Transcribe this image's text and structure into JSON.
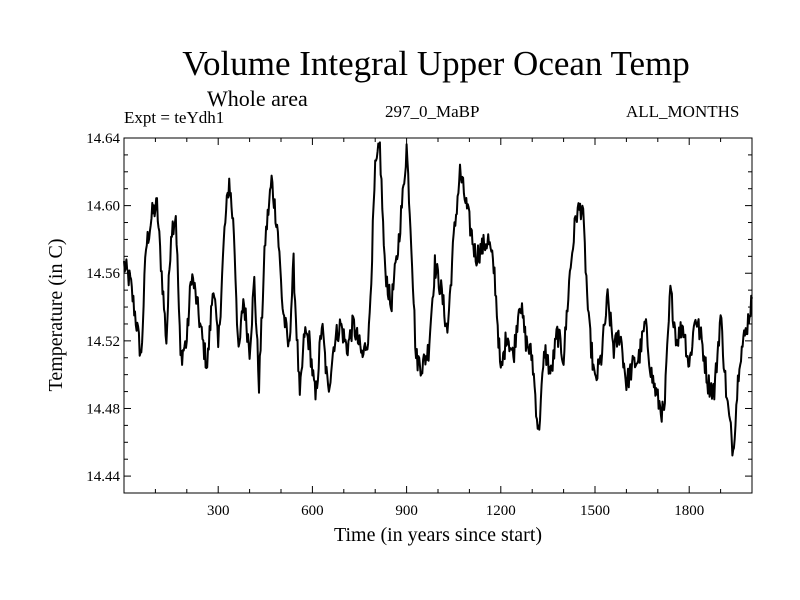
{
  "header": {
    "title": "Volume Integral Upper Ocean Temp",
    "subtitle": "Whole area",
    "experiment": "Expt = teYdh1",
    "period": "297_0_MaBP",
    "months": "ALL_MONTHS"
  },
  "chart_data": {
    "type": "line",
    "title": "Volume Integral Upper Ocean Temp",
    "xlabel": "Time (in years since start)",
    "ylabel": "Temperature (in C)",
    "xlim": [
      0,
      2000
    ],
    "ylim": [
      14.43,
      14.64
    ],
    "xticks": [
      300,
      600,
      900,
      1200,
      1500,
      1800
    ],
    "xtick_labels": [
      "300",
      "600",
      "900",
      "1200",
      "1500",
      "1800"
    ],
    "yticks": [
      14.44,
      14.48,
      14.52,
      14.56,
      14.6,
      14.64
    ],
    "ytick_labels": [
      "14.44",
      "14.48",
      "14.52",
      "14.56",
      "14.60",
      "14.64"
    ],
    "grid": false,
    "series": [
      {
        "name": "Volume Integral Upper Ocean Temp",
        "x": [
          0,
          20,
          40,
          55,
          70,
          90,
          105,
          120,
          135,
          150,
          165,
          180,
          200,
          215,
          230,
          250,
          265,
          285,
          300,
          320,
          335,
          350,
          365,
          380,
          400,
          415,
          430,
          450,
          470,
          490,
          505,
          525,
          540,
          560,
          575,
          590,
          610,
          630,
          650,
          670,
          690,
          710,
          730,
          760,
          780,
          800,
          815,
          830,
          850,
          870,
          890,
          900,
          915,
          930,
          950,
          970,
          990,
          1010,
          1030,
          1050,
          1070,
          1085,
          1100,
          1120,
          1140,
          1160,
          1180,
          1200,
          1220,
          1240,
          1260,
          1280,
          1300,
          1320,
          1340,
          1360,
          1380,
          1400,
          1420,
          1440,
          1460,
          1480,
          1500,
          1520,
          1540,
          1560,
          1580,
          1600,
          1620,
          1640,
          1660,
          1680,
          1700,
          1720,
          1740,
          1760,
          1780,
          1800,
          1820,
          1840,
          1860,
          1880,
          1900,
          1920,
          1940,
          1960,
          1980,
          2000
        ],
        "y": [
          14.565,
          14.555,
          14.53,
          14.51,
          14.575,
          14.595,
          14.6,
          14.56,
          14.52,
          14.585,
          14.595,
          14.51,
          14.52,
          14.56,
          14.545,
          14.52,
          14.505,
          14.555,
          14.515,
          14.585,
          14.615,
          14.585,
          14.51,
          14.545,
          14.515,
          14.555,
          14.495,
          14.58,
          14.615,
          14.585,
          14.54,
          14.515,
          14.565,
          14.485,
          14.525,
          14.52,
          14.485,
          14.53,
          14.49,
          14.52,
          14.53,
          14.515,
          14.53,
          14.51,
          14.525,
          14.62,
          14.635,
          14.565,
          14.54,
          14.57,
          14.61,
          14.635,
          14.58,
          14.51,
          14.505,
          14.515,
          14.565,
          14.55,
          14.525,
          14.58,
          14.62,
          14.605,
          14.59,
          14.57,
          14.575,
          14.58,
          14.56,
          14.5,
          14.525,
          14.51,
          14.545,
          14.52,
          14.51,
          14.465,
          14.515,
          14.5,
          14.525,
          14.51,
          14.56,
          14.595,
          14.6,
          14.53,
          14.495,
          14.51,
          14.545,
          14.515,
          14.525,
          14.495,
          14.505,
          14.51,
          14.53,
          14.5,
          14.485,
          14.475,
          14.55,
          14.52,
          14.53,
          14.505,
          14.535,
          14.52,
          14.495,
          14.49,
          14.535,
          14.485,
          14.455,
          14.51,
          14.525,
          14.545
        ]
      }
    ]
  }
}
